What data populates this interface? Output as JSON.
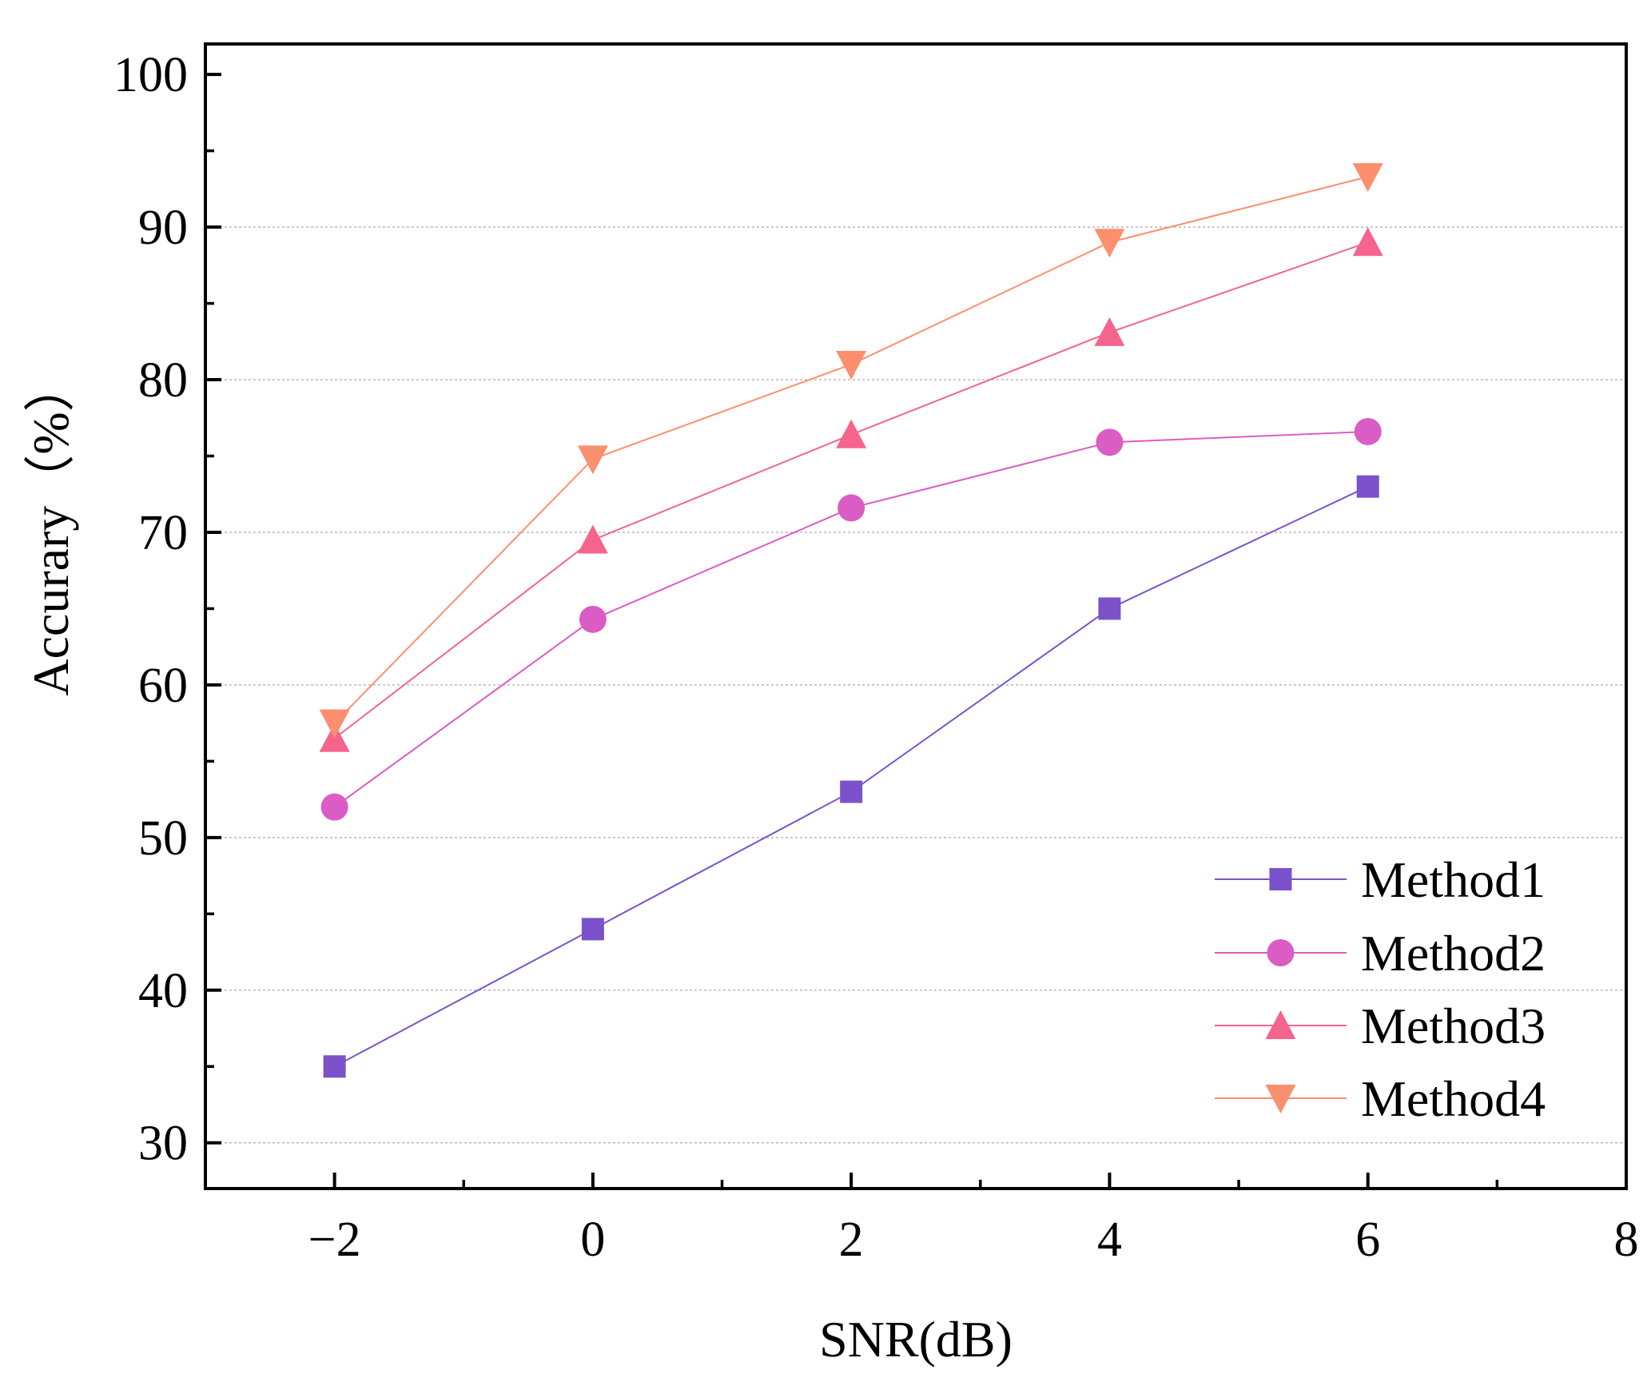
{
  "chart_data": {
    "type": "line",
    "title": "",
    "xlabel": "SNR(dB)",
    "ylabel": "Accurary（%）",
    "xlim": [
      -3,
      8
    ],
    "ylim": [
      27,
      102
    ],
    "x_ticks": [
      -2,
      0,
      2,
      4,
      6,
      8
    ],
    "x_tick_labels": [
      "−2",
      "0",
      "2",
      "4",
      "6",
      "8"
    ],
    "x_minor_ticks": [
      -1,
      1,
      3,
      5,
      7
    ],
    "y_ticks": [
      30,
      40,
      50,
      60,
      70,
      80,
      90,
      100
    ],
    "y_tick_labels": [
      "30",
      "40",
      "50",
      "60",
      "70",
      "80",
      "90",
      "100"
    ],
    "y_minor_ticks": [
      35,
      45,
      55,
      65,
      75,
      85,
      95
    ],
    "grid": true,
    "legend_position": "bottom-right",
    "x": [
      -2,
      0,
      2,
      4,
      6
    ],
    "series": [
      {
        "name": "Method1",
        "marker": "square",
        "color": "#7B52C9",
        "values": [
          35.0,
          44.0,
          53.0,
          65.0,
          73.0
        ]
      },
      {
        "name": "Method2",
        "marker": "circle",
        "color": "#DB5CC4",
        "values": [
          52.0,
          64.3,
          71.6,
          75.9,
          76.6
        ]
      },
      {
        "name": "Method3",
        "marker": "triangle-up",
        "color": "#F5648C",
        "values": [
          56.5,
          69.5,
          76.4,
          83.1,
          89.0
        ]
      },
      {
        "name": "Method4",
        "marker": "triangle-down",
        "color": "#FC8F6E",
        "values": [
          57.5,
          74.8,
          81.0,
          89.0,
          93.3
        ]
      }
    ]
  }
}
